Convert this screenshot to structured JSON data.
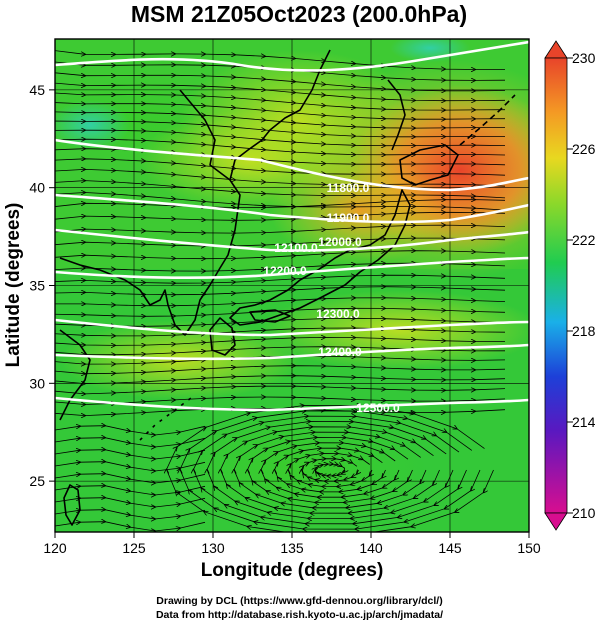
{
  "title": "MSM 21Z05Oct2023 (200.0hPa)",
  "x_axis": {
    "label": "Longitude (degrees)",
    "range": [
      120,
      150
    ],
    "ticks": [
      "120",
      "125",
      "130",
      "135",
      "140",
      "145",
      "150"
    ]
  },
  "y_axis": {
    "label": "Latitude  (degrees)",
    "range": [
      22.4,
      47.6
    ],
    "ticks": [
      "25",
      "30",
      "35",
      "40",
      "45"
    ]
  },
  "colorbar": {
    "range": [
      210,
      230
    ],
    "labels": [
      "230",
      "226",
      "222",
      "218",
      "214",
      "210"
    ],
    "colors": [
      "#d80e8f",
      "#1d20c8",
      "#1ab0e8",
      "#20cc50",
      "#c8e320",
      "#f4a81e",
      "#e8442a"
    ]
  },
  "contours": [
    {
      "label": "11800.0"
    },
    {
      "label": "11900.0"
    },
    {
      "label": "12000.0"
    },
    {
      "label": "12100.0"
    },
    {
      "label": "12200.0"
    },
    {
      "label": "12300.0"
    },
    {
      "label": "12400.0"
    },
    {
      "label": "12500.0"
    }
  ],
  "footer": {
    "line1": "Drawing by DCL (https://www.gfd-dennou.org/library/dcl/)",
    "line2": "Data from http://database.rish.kyoto-u.ac.jp/arch/jmadata/"
  }
}
